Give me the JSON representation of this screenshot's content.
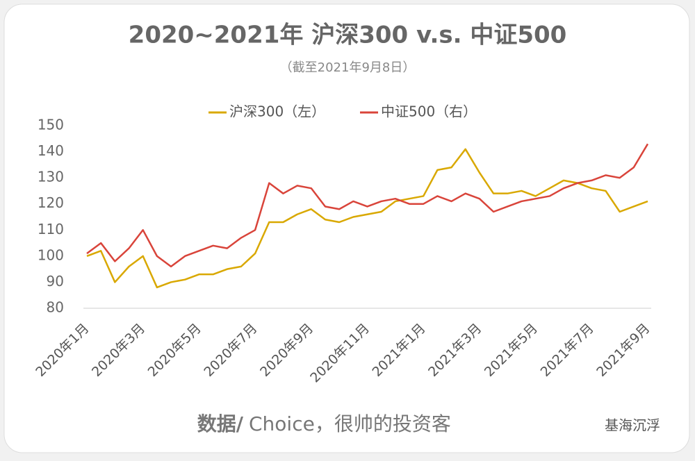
{
  "chart_data": {
    "type": "line",
    "title": "2020~2021年 沪深300 v.s. 中证500",
    "subtitle": "（截至2021年9月8日）",
    "categories": [
      "2020年1月",
      null,
      null,
      null,
      "2020年3月",
      null,
      null,
      null,
      "2020年5月",
      null,
      null,
      null,
      "2020年7月",
      null,
      null,
      null,
      "2020年9月",
      null,
      null,
      null,
      "2020年11月",
      null,
      null,
      null,
      "2021年1月",
      null,
      null,
      null,
      "2021年3月",
      null,
      null,
      null,
      "2021年5月",
      null,
      null,
      null,
      "2021年7月",
      null,
      null,
      null,
      "2021年9月"
    ],
    "series": [
      {
        "name": "沪深300（左）",
        "color": "#d9a800",
        "values": [
          100,
          102,
          90,
          96,
          100,
          88,
          90,
          91,
          93,
          93,
          95,
          96,
          101,
          113,
          113,
          116,
          118,
          114,
          113,
          115,
          116,
          117,
          121,
          122,
          123,
          133,
          134,
          141,
          132,
          124,
          124,
          125,
          123,
          126,
          129,
          128,
          126,
          125,
          117,
          119,
          121
        ]
      },
      {
        "name": "中证500（右）",
        "color": "#d9443a",
        "values": [
          101,
          105,
          98,
          103,
          110,
          100,
          96,
          100,
          102,
          104,
          103,
          107,
          110,
          128,
          124,
          127,
          126,
          119,
          118,
          121,
          119,
          121,
          122,
          120,
          120,
          123,
          121,
          124,
          122,
          117,
          119,
          121,
          122,
          123,
          126,
          128,
          129,
          131,
          130,
          134,
          143
        ]
      }
    ],
    "ylim": [
      80,
      150
    ],
    "yticks": [
      80,
      90,
      100,
      110,
      120,
      130,
      140,
      150
    ],
    "grid": false,
    "legend": "top",
    "source_label": "数据/",
    "source_text": "Choice，很帅的投资客",
    "watermark": "基海沉浮"
  }
}
